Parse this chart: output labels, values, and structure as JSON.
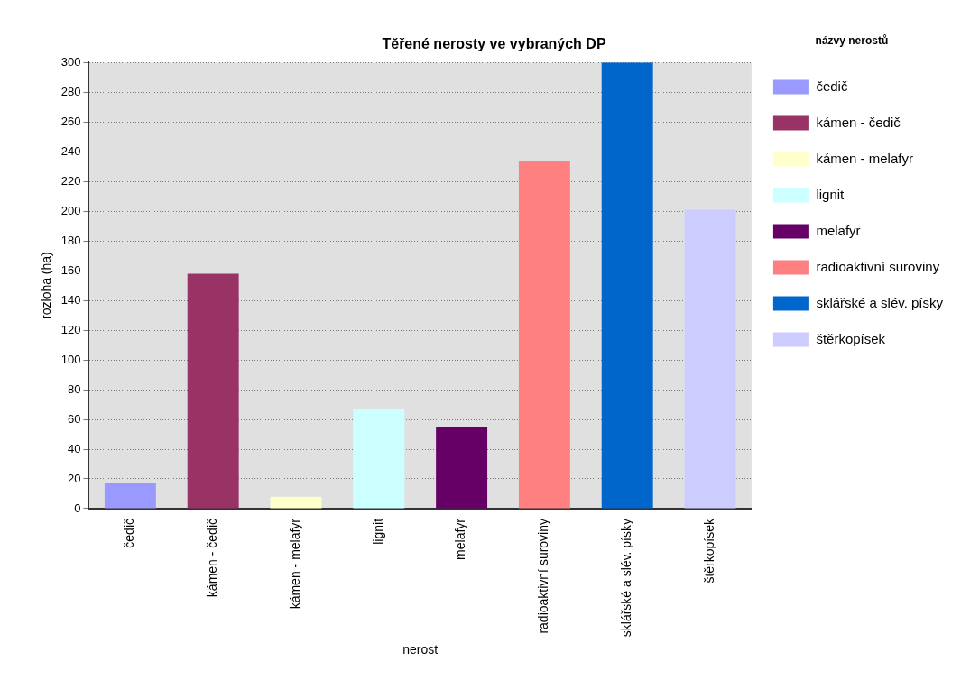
{
  "chart_data": {
    "type": "bar",
    "title": "Těřené nerosty ve vybraných DP",
    "xlabel": "nerost",
    "ylabel": "rozloha (ha)",
    "legend_title": "názvy nerostů",
    "categories": [
      "čedič",
      "kámen - čedič",
      "kámen - melafyr",
      "lignit",
      "melafyr",
      "radioaktivní suroviny",
      "sklářské a slév. písky",
      "štěrkopísek"
    ],
    "series": [
      {
        "name": "čedič",
        "color": "#9999ff",
        "values": [
          17,
          null,
          null,
          null,
          null,
          null,
          null,
          null
        ]
      },
      {
        "name": "kámen - čedič",
        "color": "#993366",
        "values": [
          null,
          158,
          null,
          null,
          null,
          null,
          null,
          null
        ]
      },
      {
        "name": "kámen - melafyr",
        "color": "#ffffcc",
        "values": [
          null,
          null,
          8,
          null,
          null,
          null,
          null,
          null
        ]
      },
      {
        "name": "lignit",
        "color": "#ccffff",
        "values": [
          null,
          null,
          null,
          67,
          null,
          null,
          null,
          null
        ]
      },
      {
        "name": "melafyr",
        "color": "#660066",
        "values": [
          null,
          null,
          null,
          null,
          55,
          null,
          null,
          null
        ]
      },
      {
        "name": "radioaktivní suroviny",
        "color": "#ff8080",
        "values": [
          null,
          null,
          null,
          null,
          null,
          234,
          null,
          null
        ]
      },
      {
        "name": "sklářské a slév. písky",
        "color": "#0066cc",
        "values": [
          null,
          null,
          null,
          null,
          null,
          null,
          300,
          null
        ]
      },
      {
        "name": "štěrkopísek",
        "color": "#ccccff",
        "values": [
          null,
          null,
          null,
          null,
          null,
          null,
          null,
          201
        ]
      }
    ],
    "ylim": [
      0,
      300
    ],
    "yticks": [
      0,
      20,
      40,
      60,
      80,
      100,
      120,
      140,
      160,
      180,
      200,
      220,
      240,
      260,
      280,
      300
    ],
    "grid": "y",
    "legend": "right"
  }
}
